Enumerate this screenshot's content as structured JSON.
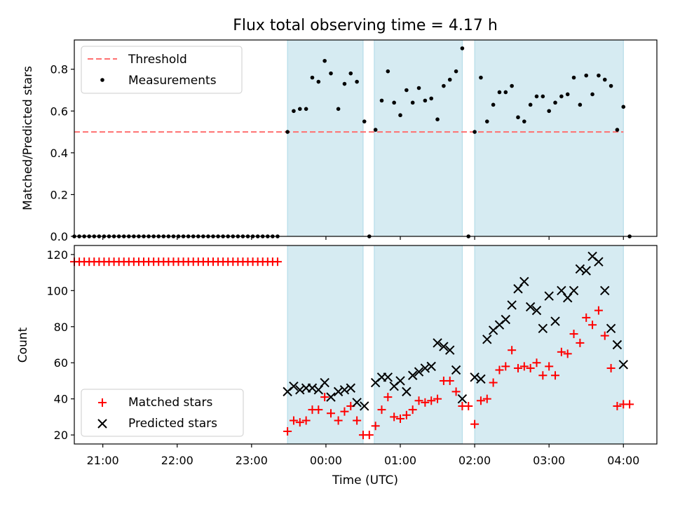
{
  "chart_data": [
    {
      "type": "scatter",
      "title": "Flux total observing time = 4.17 h",
      "xlabel": "",
      "ylabel": "Matched/Predicted stars",
      "ylim": [
        0,
        0.94
      ],
      "yticks": [
        0.0,
        0.2,
        0.4,
        0.6,
        0.8
      ],
      "xlim": [
        "20:37",
        "04:27"
      ],
      "legend": {
        "position": "top-left",
        "entries": [
          "Threshold",
          "Measurements"
        ]
      },
      "threshold": {
        "name": "Threshold",
        "y": 0.5,
        "x_start": "20:37",
        "x_end": "04:00",
        "color": "#ff7070",
        "style": "dashed"
      },
      "shaded_intervals": [
        [
          "23:29",
          "00:30"
        ],
        [
          "00:39",
          "01:50"
        ],
        [
          "02:00",
          "04:00"
        ]
      ],
      "series": [
        {
          "name": "Measurements",
          "color": "#000000",
          "points": [
            [
              "20:37",
              0
            ],
            [
              "20:41",
              0
            ],
            [
              "20:45",
              0
            ],
            [
              "20:49",
              0
            ],
            [
              "20:53",
              0
            ],
            [
              "20:57",
              0
            ],
            [
              "21:01",
              0
            ],
            [
              "21:05",
              0
            ],
            [
              "21:09",
              0
            ],
            [
              "21:13",
              0
            ],
            [
              "21:17",
              0
            ],
            [
              "21:21",
              0
            ],
            [
              "21:25",
              0
            ],
            [
              "21:29",
              0
            ],
            [
              "21:33",
              0
            ],
            [
              "21:37",
              0
            ],
            [
              "21:41",
              0
            ],
            [
              "21:45",
              0
            ],
            [
              "21:49",
              0
            ],
            [
              "21:53",
              0
            ],
            [
              "21:57",
              0
            ],
            [
              "22:01",
              0
            ],
            [
              "22:05",
              0
            ],
            [
              "22:09",
              0
            ],
            [
              "22:13",
              0
            ],
            [
              "22:17",
              0
            ],
            [
              "22:21",
              0
            ],
            [
              "22:25",
              0
            ],
            [
              "22:29",
              0
            ],
            [
              "22:33",
              0
            ],
            [
              "22:37",
              0
            ],
            [
              "22:41",
              0
            ],
            [
              "22:45",
              0
            ],
            [
              "22:49",
              0
            ],
            [
              "22:53",
              0
            ],
            [
              "22:57",
              0
            ],
            [
              "23:01",
              0
            ],
            [
              "23:05",
              0
            ],
            [
              "23:09",
              0
            ],
            [
              "23:13",
              0
            ],
            [
              "23:17",
              0
            ],
            [
              "23:21",
              0
            ],
            [
              "23:29",
              0.5
            ],
            [
              "23:34",
              0.6
            ],
            [
              "23:39",
              0.61
            ],
            [
              "23:44",
              0.61
            ],
            [
              "23:49",
              0.76
            ],
            [
              "23:54",
              0.74
            ],
            [
              "23:59",
              0.84
            ],
            [
              "00:04",
              0.78
            ],
            [
              "00:10",
              0.61
            ],
            [
              "00:15",
              0.73
            ],
            [
              "00:20",
              0.78
            ],
            [
              "00:25",
              0.74
            ],
            [
              "00:31",
              0.55
            ],
            [
              "00:35",
              0.0
            ],
            [
              "00:40",
              0.51
            ],
            [
              "00:45",
              0.65
            ],
            [
              "00:50",
              0.79
            ],
            [
              "00:55",
              0.64
            ],
            [
              "01:00",
              0.58
            ],
            [
              "01:05",
              0.7
            ],
            [
              "01:10",
              0.64
            ],
            [
              "01:15",
              0.71
            ],
            [
              "01:20",
              0.65
            ],
            [
              "01:25",
              0.66
            ],
            [
              "01:30",
              0.56
            ],
            [
              "01:35",
              0.72
            ],
            [
              "01:40",
              0.75
            ],
            [
              "01:45",
              0.79
            ],
            [
              "01:50",
              0.9
            ],
            [
              "01:55",
              0.0
            ],
            [
              "02:00",
              0.5
            ],
            [
              "02:05",
              0.76
            ],
            [
              "02:10",
              0.55
            ],
            [
              "02:15",
              0.63
            ],
            [
              "02:20",
              0.69
            ],
            [
              "02:25",
              0.69
            ],
            [
              "02:30",
              0.72
            ],
            [
              "02:35",
              0.57
            ],
            [
              "02:40",
              0.55
            ],
            [
              "02:45",
              0.63
            ],
            [
              "02:50",
              0.67
            ],
            [
              "02:55",
              0.67
            ],
            [
              "03:00",
              0.6
            ],
            [
              "03:05",
              0.64
            ],
            [
              "03:10",
              0.67
            ],
            [
              "03:15",
              0.68
            ],
            [
              "03:20",
              0.76
            ],
            [
              "03:25",
              0.63
            ],
            [
              "03:30",
              0.77
            ],
            [
              "03:35",
              0.68
            ],
            [
              "03:40",
              0.77
            ],
            [
              "03:45",
              0.75
            ],
            [
              "03:50",
              0.72
            ],
            [
              "03:55",
              0.51
            ],
            [
              "04:00",
              0.62
            ],
            [
              "04:05",
              0.0
            ]
          ]
        }
      ]
    },
    {
      "type": "scatter",
      "title": "",
      "xlabel": "Time (UTC)",
      "ylabel": "Count",
      "ylim": [
        15,
        125
      ],
      "yticks": [
        20,
        40,
        60,
        80,
        100,
        120
      ],
      "xlim": [
        "20:37",
        "04:27"
      ],
      "xticks": [
        "21:00",
        "22:00",
        "23:00",
        "00:00",
        "01:00",
        "02:00",
        "03:00",
        "04:00"
      ],
      "legend": {
        "position": "bottom-left",
        "entries": [
          "Matched stars",
          "Predicted stars"
        ]
      },
      "shaded_intervals": [
        [
          "23:29",
          "00:30"
        ],
        [
          "00:39",
          "01:50"
        ],
        [
          "02:00",
          "04:00"
        ]
      ],
      "series": [
        {
          "name": "Matched stars",
          "marker": "plus",
          "color": "#ff0000",
          "points": [
            [
              "20:37",
              116
            ],
            [
              "20:41",
              116
            ],
            [
              "20:45",
              116
            ],
            [
              "20:49",
              116
            ],
            [
              "20:53",
              116
            ],
            [
              "20:57",
              116
            ],
            [
              "21:01",
              116
            ],
            [
              "21:05",
              116
            ],
            [
              "21:09",
              116
            ],
            [
              "21:13",
              116
            ],
            [
              "21:17",
              116
            ],
            [
              "21:21",
              116
            ],
            [
              "21:25",
              116
            ],
            [
              "21:29",
              116
            ],
            [
              "21:33",
              116
            ],
            [
              "21:37",
              116
            ],
            [
              "21:41",
              116
            ],
            [
              "21:45",
              116
            ],
            [
              "21:49",
              116
            ],
            [
              "21:53",
              116
            ],
            [
              "21:57",
              116
            ],
            [
              "22:01",
              116
            ],
            [
              "22:05",
              116
            ],
            [
              "22:09",
              116
            ],
            [
              "22:13",
              116
            ],
            [
              "22:17",
              116
            ],
            [
              "22:21",
              116
            ],
            [
              "22:25",
              116
            ],
            [
              "22:29",
              116
            ],
            [
              "22:33",
              116
            ],
            [
              "22:37",
              116
            ],
            [
              "22:41",
              116
            ],
            [
              "22:45",
              116
            ],
            [
              "22:49",
              116
            ],
            [
              "22:53",
              116
            ],
            [
              "22:57",
              116
            ],
            [
              "23:01",
              116
            ],
            [
              "23:05",
              116
            ],
            [
              "23:09",
              116
            ],
            [
              "23:13",
              116
            ],
            [
              "23:17",
              116
            ],
            [
              "23:21",
              116
            ],
            [
              "23:29",
              22
            ],
            [
              "23:34",
              28
            ],
            [
              "23:39",
              27
            ],
            [
              "23:44",
              28
            ],
            [
              "23:49",
              34
            ],
            [
              "23:54",
              34
            ],
            [
              "23:59",
              41
            ],
            [
              "00:04",
              32
            ],
            [
              "00:10",
              28
            ],
            [
              "00:15",
              33
            ],
            [
              "00:20",
              36
            ],
            [
              "00:25",
              28
            ],
            [
              "00:30",
              20
            ],
            [
              "00:35",
              20
            ],
            [
              "00:40",
              25
            ],
            [
              "00:45",
              34
            ],
            [
              "00:50",
              41
            ],
            [
              "00:55",
              30
            ],
            [
              "01:00",
              29
            ],
            [
              "01:05",
              31
            ],
            [
              "01:10",
              34
            ],
            [
              "01:15",
              39
            ],
            [
              "01:20",
              38
            ],
            [
              "01:25",
              39
            ],
            [
              "01:30",
              40
            ],
            [
              "01:35",
              50
            ],
            [
              "01:40",
              50
            ],
            [
              "01:45",
              44
            ],
            [
              "01:50",
              36
            ],
            [
              "01:55",
              36
            ],
            [
              "02:00",
              26
            ],
            [
              "02:05",
              39
            ],
            [
              "02:10",
              40
            ],
            [
              "02:15",
              49
            ],
            [
              "02:20",
              56
            ],
            [
              "02:25",
              58
            ],
            [
              "02:30",
              67
            ],
            [
              "02:35",
              57
            ],
            [
              "02:40",
              58
            ],
            [
              "02:45",
              57
            ],
            [
              "02:50",
              60
            ],
            [
              "02:55",
              53
            ],
            [
              "03:00",
              58
            ],
            [
              "03:05",
              53
            ],
            [
              "03:10",
              66
            ],
            [
              "03:15",
              65
            ],
            [
              "03:20",
              76
            ],
            [
              "03:25",
              71
            ],
            [
              "03:30",
              85
            ],
            [
              "03:35",
              81
            ],
            [
              "03:40",
              89
            ],
            [
              "03:45",
              75
            ],
            [
              "03:50",
              57
            ],
            [
              "03:55",
              36
            ],
            [
              "04:00",
              37
            ],
            [
              "04:05",
              37
            ]
          ]
        },
        {
          "name": "Predicted stars",
          "marker": "x",
          "color": "#000000",
          "points": [
            [
              "23:29",
              44
            ],
            [
              "23:34",
              47
            ],
            [
              "23:39",
              45
            ],
            [
              "23:44",
              46
            ],
            [
              "23:49",
              46
            ],
            [
              "23:54",
              45
            ],
            [
              "23:59",
              49
            ],
            [
              "00:04",
              41
            ],
            [
              "00:10",
              44
            ],
            [
              "00:15",
              45
            ],
            [
              "00:20",
              46
            ],
            [
              "00:25",
              38
            ],
            [
              "00:31",
              36
            ],
            [
              "00:40",
              49
            ],
            [
              "00:45",
              52
            ],
            [
              "00:50",
              52
            ],
            [
              "00:55",
              47
            ],
            [
              "01:00",
              50
            ],
            [
              "01:05",
              44
            ],
            [
              "01:10",
              53
            ],
            [
              "01:15",
              55
            ],
            [
              "01:20",
              57
            ],
            [
              "01:25",
              58
            ],
            [
              "01:30",
              71
            ],
            [
              "01:35",
              69
            ],
            [
              "01:40",
              67
            ],
            [
              "01:45",
              56
            ],
            [
              "01:50",
              40
            ],
            [
              "02:00",
              52
            ],
            [
              "02:05",
              51
            ],
            [
              "02:10",
              73
            ],
            [
              "02:15",
              78
            ],
            [
              "02:20",
              81
            ],
            [
              "02:25",
              84
            ],
            [
              "02:30",
              92
            ],
            [
              "02:35",
              101
            ],
            [
              "02:40",
              105
            ],
            [
              "02:45",
              91
            ],
            [
              "02:50",
              89
            ],
            [
              "02:55",
              79
            ],
            [
              "03:00",
              97
            ],
            [
              "03:05",
              83
            ],
            [
              "03:10",
              100
            ],
            [
              "03:15",
              96
            ],
            [
              "03:20",
              100
            ],
            [
              "03:25",
              112
            ],
            [
              "03:30",
              111
            ],
            [
              "03:35",
              119
            ],
            [
              "03:40",
              116
            ],
            [
              "03:45",
              100
            ],
            [
              "03:50",
              79
            ],
            [
              "03:55",
              70
            ],
            [
              "04:00",
              59
            ]
          ]
        }
      ]
    }
  ]
}
